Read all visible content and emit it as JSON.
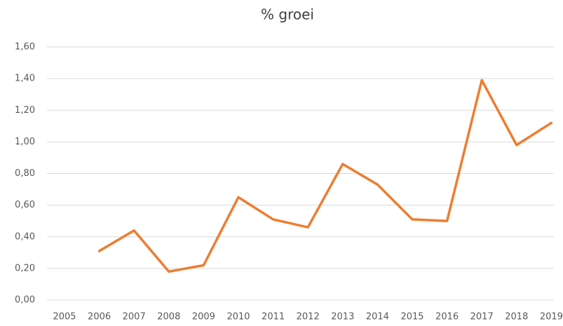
{
  "chart_data": {
    "type": "line",
    "title": "% groei",
    "categories": [
      "2005",
      "2006",
      "2007",
      "2008",
      "2009",
      "2010",
      "2011",
      "2012",
      "2013",
      "2014",
      "2015",
      "2016",
      "2017",
      "2018",
      "2019"
    ],
    "values": [
      null,
      0.31,
      0.44,
      0.18,
      0.22,
      0.65,
      0.51,
      0.46,
      0.86,
      0.73,
      0.51,
      0.5,
      1.39,
      0.98,
      1.12
    ],
    "color": "#ed7d31",
    "ylim": [
      0,
      1.6
    ],
    "yticks": [
      {
        "value": 0,
        "label": "0,00"
      },
      {
        "value": 0.2,
        "label": "0,20"
      },
      {
        "value": 0.4,
        "label": "0,40"
      },
      {
        "value": 0.6,
        "label": "0,60"
      },
      {
        "value": 0.8,
        "label": "0,80"
      },
      {
        "value": 1.0,
        "label": "1,00"
      },
      {
        "value": 1.2,
        "label": "1,20"
      },
      {
        "value": 1.4,
        "label": "1,40"
      },
      {
        "value": 1.6,
        "label": "1,60"
      }
    ],
    "grid": true
  }
}
